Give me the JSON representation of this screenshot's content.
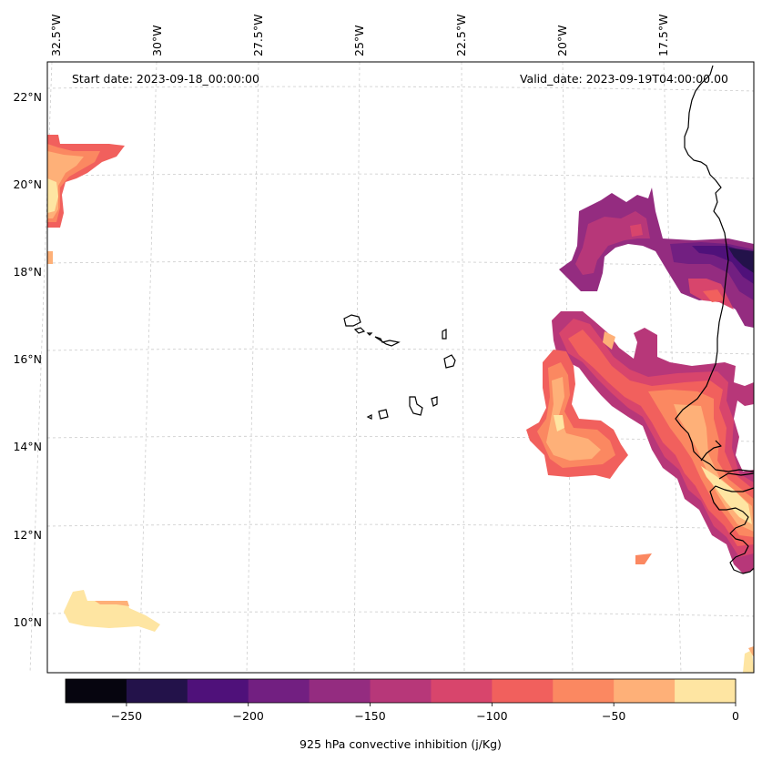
{
  "map": {
    "start_date": "Start date: 2023-09-18_00:00:00",
    "valid_date": "Valid_date: 2023-09-19T04:00:00.00",
    "lon_labels": [
      "32.5°W",
      "30°W",
      "27.5°W",
      "25°W",
      "22.5°W",
      "20°W",
      "17.5°W"
    ],
    "lat_labels": [
      "22°N",
      "20°N",
      "18°N",
      "16°N",
      "14°N",
      "12°N",
      "10°N"
    ],
    "gridlines": true
  },
  "colorbar": {
    "label": "925 hPa convective inhibition (j/Kg)",
    "tick_labels": [
      "−250",
      "−200",
      "−150",
      "−100",
      "−50",
      "0"
    ],
    "tick_values": [
      -250,
      -200,
      -150,
      -100,
      -50,
      0
    ],
    "range": [
      -275,
      0
    ],
    "levels": [
      -275,
      -250,
      -225,
      -200,
      -175,
      -150,
      -125,
      -100,
      -75,
      -50,
      -25,
      0
    ],
    "colors": [
      "#06050f",
      "#23124a",
      "#4f117a",
      "#721f81",
      "#942c80",
      "#b73779",
      "#d8456c",
      "#f1605d",
      "#fb8861",
      "#feb078",
      "#fee5a2"
    ]
  },
  "colors": {
    "coastline": "#000000",
    "gridline": "#cccccc",
    "frame": "#000000"
  }
}
